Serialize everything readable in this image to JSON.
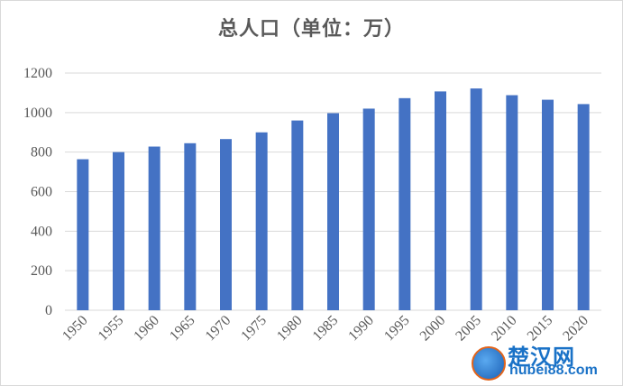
{
  "chart_data": {
    "type": "bar",
    "title": "总人口（单位：万）",
    "categories": [
      "1950",
      "1955",
      "1960",
      "1965",
      "1970",
      "1975",
      "1980",
      "1985",
      "1990",
      "1995",
      "2000",
      "2005",
      "2010",
      "2015",
      "2020"
    ],
    "values": [
      764,
      800,
      828,
      845,
      866,
      900,
      960,
      997,
      1020,
      1073,
      1107,
      1122,
      1088,
      1065,
      1043
    ],
    "ylim": [
      0,
      1200
    ],
    "yticks": [
      0,
      200,
      400,
      600,
      800,
      1000,
      1200
    ],
    "grid": true,
    "bar_color": "#4472c4",
    "grid_color": "#d9d9d9"
  },
  "watermark": {
    "name": "楚汉网",
    "domain": "hubei88.com"
  }
}
